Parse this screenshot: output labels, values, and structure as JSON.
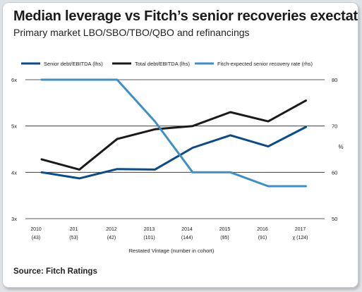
{
  "chart_data": {
    "type": "line",
    "title": "Median leverage vs Fitch’s senior recoveries exectations",
    "subtitle": "Primary market LBO/SBO/TBO/QBO and refinancings",
    "xlabel": "Restated Vintage (number in cohort)",
    "ylabel": "",
    "y2label": "%",
    "source": "Source: Fitch Ratings",
    "categories": [
      {
        "year": "2010",
        "cohort": "(43)"
      },
      {
        "year": "201",
        "cohort": "(53)"
      },
      {
        "year": "2012",
        "cohort": "(42)"
      },
      {
        "year": "2013",
        "cohort": "(101)"
      },
      {
        "year": "2014",
        "cohort": "(144)"
      },
      {
        "year": "2015",
        "cohort": "(95)"
      },
      {
        "year": "2016",
        "cohort": "(91)"
      },
      {
        "year": "2017",
        "cohort": "χ (124)"
      }
    ],
    "ylim": [
      3,
      6
    ],
    "y_ticks": [
      "3x",
      "4x",
      "5x",
      "6x"
    ],
    "y2lim": [
      50,
      80
    ],
    "y2_ticks": [
      "50",
      "60",
      "70",
      "80"
    ],
    "grid": true,
    "legend_position": "top",
    "series": [
      {
        "name": "Senior debt/EBITDA (lhs)",
        "axis": "left",
        "color": "#0a4b8c",
        "values": [
          4.0,
          3.87,
          4.07,
          4.06,
          4.53,
          4.8,
          4.56,
          4.98
        ]
      },
      {
        "name": "Total debt/EBITDA (lhs)",
        "axis": "left",
        "color": "#1a1a1a",
        "values": [
          4.28,
          4.06,
          4.72,
          4.93,
          5.0,
          5.3,
          5.1,
          5.55
        ]
      },
      {
        "name": "Fitch-expected senior recovery rate (rhs)",
        "axis": "right",
        "color": "#3d8fc4",
        "values": [
          80,
          80,
          80,
          71,
          60,
          60,
          57,
          57
        ]
      }
    ]
  }
}
